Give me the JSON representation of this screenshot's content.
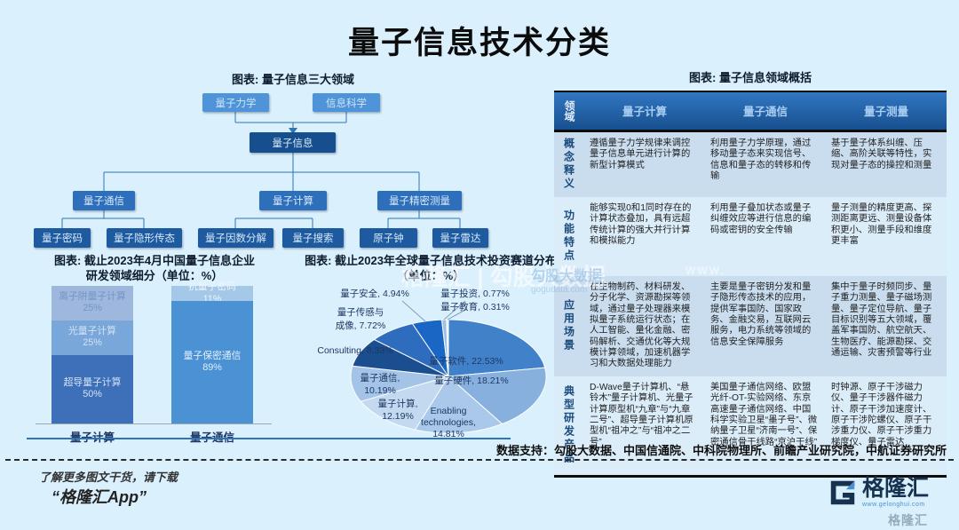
{
  "page_title": "量子信息技术分类",
  "tree": {
    "caption": "图表: 量子信息三大领域",
    "roots": [
      {
        "label": "量子力学"
      },
      {
        "label": "信息科学"
      }
    ],
    "center": {
      "label": "量子信息"
    },
    "branches": [
      {
        "label": "量子通信",
        "children": [
          {
            "label": "量子密码"
          },
          {
            "label": "量子隐形传态"
          }
        ]
      },
      {
        "label": "量子计算",
        "children": [
          {
            "label": "量子因数分解"
          },
          {
            "label": "量子搜索"
          }
        ]
      },
      {
        "label": "量子精密测量",
        "children": [
          {
            "label": "原子钟"
          },
          {
            "label": "量子雷达"
          }
        ]
      }
    ]
  },
  "chart_data": [
    {
      "id": "china-quantum-rd-breakdown",
      "type": "bar",
      "stacked": true,
      "unit": "%",
      "ylim": [
        0,
        100
      ],
      "title": "图表: 截止2023年4月中国量子信息企业研发领域细分（单位：%）",
      "title_lines": [
        "图表: 截止2023年4月中国量子信息企业",
        "研发领域细分（单位：%）"
      ],
      "categories": [
        "量子计算",
        "量子通信"
      ],
      "bars": [
        {
          "category": "量子计算",
          "segments": [
            {
              "label": "离子阱量子计算",
              "value": 25,
              "color": "#9db8dc",
              "text_color": "#7495c6"
            },
            {
              "label": "光量子计算",
              "value": 25,
              "color": "#7aa7d9",
              "text_color": "#d3e3f4"
            },
            {
              "label": "超导量子计算",
              "value": 50,
              "color": "#3e70ba",
              "text_color": "#d3e3f4"
            }
          ]
        },
        {
          "category": "量子通信",
          "segments": [
            {
              "label": "抗量子密码",
              "value": 11,
              "color": "#a5c8e8",
              "text_color": "#eef5fc"
            },
            {
              "label": "量子保密通信",
              "value": 89,
              "color": "#4b92d5",
              "text_color": "#e3eefa"
            }
          ]
        }
      ]
    },
    {
      "id": "global-quantum-investment",
      "type": "pie",
      "unit": "%",
      "title": "图表: 截止2023年全球量子信息技术投资赛道分布（单位：%）",
      "title_lines": [
        "图表: 截止2023年全球量子信息技术投资赛道分布",
        "（单位：%）"
      ],
      "label_color": "#1f3864",
      "slices": [
        {
          "label": "量子软件",
          "value": 22.53,
          "color": "#4181ca",
          "lines": [
            "量子软件, 22.53%"
          ]
        },
        {
          "label": "量子硬件",
          "value": 18.21,
          "color": "#87b0de",
          "lines": [
            "量子硬件, 18.21%"
          ]
        },
        {
          "label": "Enabling technologies",
          "value": 14.81,
          "color": "#aac8ea",
          "lines": [
            "Enabling",
            "technologies,",
            "14.81%"
          ]
        },
        {
          "label": "量子计算",
          "value": 12.19,
          "color": "#c3d9f0",
          "lines": [
            "量子计算,",
            "12.19%"
          ]
        },
        {
          "label": "量子通信",
          "value": 10.19,
          "color": "#a3c3e7",
          "lines": [
            "量子通信,",
            "10.19%"
          ]
        },
        {
          "label": "Consulting",
          "value": 8.33,
          "color": "#1b4e8e",
          "lines": [
            "Consulting, 8.33%"
          ]
        },
        {
          "label": "量子传感与成像",
          "value": 7.72,
          "color": "#2e6dbd",
          "lines": [
            "量子传感与",
            "成像, 7.72%"
          ]
        },
        {
          "label": "量子安全",
          "value": 4.94,
          "color": "#1a66c5",
          "lines": [
            "量子安全, 4.94%"
          ]
        },
        {
          "label": "量子投资",
          "value": 0.77,
          "color": "#9cc2e5",
          "lines": [
            "量子投资, 0.77%"
          ]
        },
        {
          "label": "量子教育",
          "value": 0.31,
          "color": "#eef5fc",
          "lines": [
            "量子教育, 0.31%"
          ]
        }
      ]
    }
  ],
  "table": {
    "caption": "图表: 量子信息领域概括",
    "corner": "领域",
    "columns": [
      "量子计算",
      "量子通信",
      "量子测量"
    ],
    "rows": [
      {
        "header": "概念释义",
        "cells": [
          "遵循量子力学规律来调控量子信息单元进行计算的新型计算模式",
          "利用量子力学原理，通过移动量子态来实现信号、信息和量子态的转移和传输",
          "基于量子体系纠缠、压缩、高阶关联等特性，实现对量子态的操控和测量"
        ]
      },
      {
        "header": "功能特点",
        "cells": [
          "能够实现0和1同时存在的计算状态叠加，具有远超传统计算的强大并行计算和模拟能力",
          "利用量子叠加状态或量子纠缠效应等进行信息的编码或密钥的安全传输",
          "量子测量的精度更高、探测距离更远、测量设备体积更小、测量手段和维度更丰富"
        ]
      },
      {
        "header": "应用场景",
        "cells": [
          "在生物制药、材料研发、分子化学、资源勘探等领域，通过量子处理器来模拟量子系统运行状态；在人工智能、量化金融、密码解析、交通优化等大规模计算领域，加速机器学习和大数据处理能力",
          "主要是量子密钥分发和量子隐形传态技术的应用，提供军事国防、国家政务、金融交易，互联网云服务，电力系统等领域的信息安全保障服务",
          "集中于量子时频同步、量子重力测量、量子磁场测量、量子定位导航、量子目标识别等五大领域，覆盖军事国防、航空航天、生物医疗、能源勘探、交通运输、灾害预警等行业"
        ]
      },
      {
        "header": "典型研发产品",
        "cells": [
          "D-Wave量子计算机、“悬铃木”量子计算机、光量子计算原型机“九章”与“九章二号”、超导量子计算机原型机“祖冲之”与“祖冲之二号”",
          "美国量子通信网络、欧盟光纤-OT-实验网络、东京高速量子通信网络、中国科学实验卫星“墨子号”、微纳量子卫星“济南一号”、保密通信骨干线路“京沪干线”",
          "时钟源、原子干涉磁力仪、量子干涉器件磁力计、原子干涉加速度计、原子干涉陀螺仪、原子干涉重力仪、原子干涉重力梯度仪、量子雷达"
        ]
      }
    ]
  },
  "support_line": "数据支持：勾股大数据、中国信通院、中科院物理所、前瞻产业研究院，中航证券研究所",
  "promo": {
    "line1": "了解更多图文干货，请下载",
    "line2": "“格隆汇App”"
  },
  "logo": {
    "name": "格隆汇",
    "url": "www.gelonghui.com"
  },
  "watermark": {
    "center": "格隆汇 | 勾股大数据",
    "www": "WWW.",
    "table_line1": "勾股大数据",
    "table_line2": "gogudata.com",
    "ghost": "格隆汇"
  },
  "colors": {
    "accent_blue": "#2f74b8",
    "dark_navy": "#174e8d",
    "background": "#daf0fc"
  }
}
